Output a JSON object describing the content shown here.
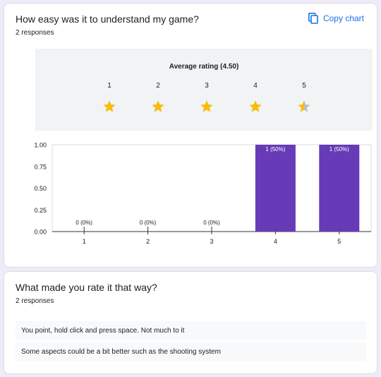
{
  "question1": {
    "title": "How easy was it to understand my game?",
    "responses_label": "2 responses",
    "copy_label": "Copy chart",
    "average_label": "Average rating (4.50)",
    "stars": [
      {
        "label": "1",
        "fill": 1
      },
      {
        "label": "2",
        "fill": 1
      },
      {
        "label": "3",
        "fill": 1
      },
      {
        "label": "4",
        "fill": 1
      },
      {
        "label": "5",
        "fill": 0.5
      }
    ]
  },
  "chart_data": {
    "type": "bar",
    "categories": [
      "1",
      "2",
      "3",
      "4",
      "5"
    ],
    "values": [
      0,
      0,
      0,
      1,
      1
    ],
    "data_labels": [
      "0 (0%)",
      "0 (0%)",
      "0 (0%)",
      "1 (50%)",
      "1 (50%)"
    ],
    "yticks": [
      "0.00",
      "0.25",
      "0.50",
      "0.75",
      "1.00"
    ],
    "ylim": [
      0,
      1
    ],
    "title": "",
    "xlabel": "",
    "ylabel": "",
    "bar_color": "#673ab7",
    "grid": false
  },
  "question2": {
    "title": "What made you rate it that way?",
    "responses_label": "2 responses",
    "responses": [
      "You point, hold click and press space. Not much to it",
      "Some aspects could be a bit better such as the shooting system"
    ]
  },
  "colors": {
    "background": "#f0ebf8",
    "accent": "#1a73e8",
    "star": "#fbbc04",
    "star_empty": "#bdbdbd"
  }
}
